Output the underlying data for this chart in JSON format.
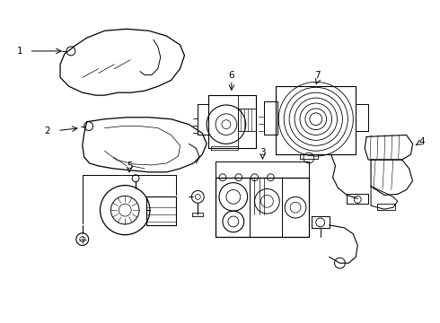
{
  "bg_color": "#ffffff",
  "line_color": "#000000",
  "figsize": [
    4.9,
    3.6
  ],
  "dpi": 100,
  "label_fontsize": 7.5
}
